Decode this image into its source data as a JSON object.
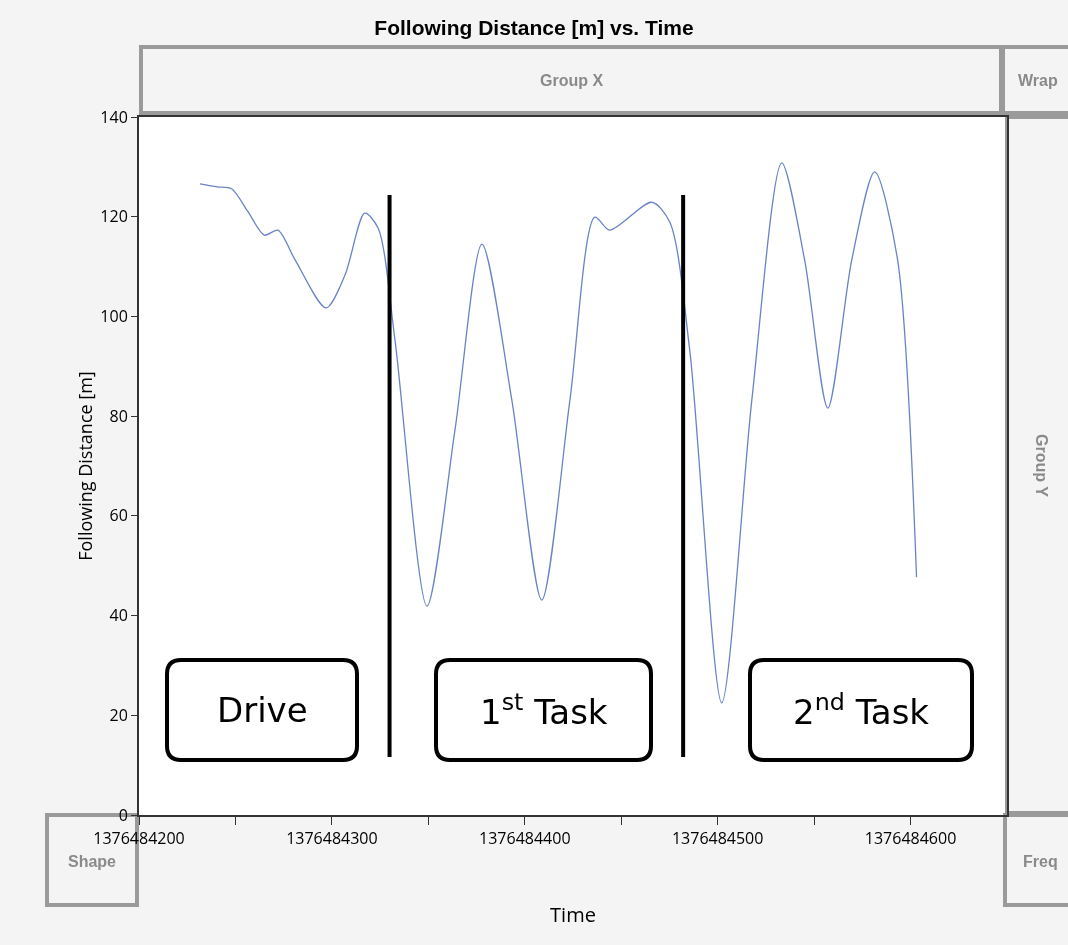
{
  "chart_data": {
    "type": "line",
    "title": "Following Distance [m] vs. Time",
    "xlabel": "Time",
    "ylabel": "Following Distance [m]",
    "x": [
      1376484231.6,
      1376484240.5,
      1376484248,
      1376484256.5,
      1376484265,
      1376484272,
      1376484281,
      1376484297,
      1376484306.8,
      1376484317,
      1376484324,
      1376484332.7,
      1376484349.3,
      1376484363.8,
      1376484377.8,
      1376484393.3,
      1376484408.8,
      1376484423.4,
      1376484436.3,
      1376484444,
      1376484465.8,
      1376484475.2,
      1376484485.5,
      1376484502.1,
      1376484517.7,
      1376484533.2,
      1376484545.1,
      1376484557.1,
      1376484569.5,
      1376484581.4,
      1376484593.3,
      1376484603.1
    ],
    "series": [
      {
        "color": "#6a83c6",
        "values": [
          126.6,
          126,
          125.6,
          121,
          116.3,
          117.3,
          111.3,
          101.7,
          108.3,
          120.7,
          117.7,
          95.3,
          41.9,
          77.2,
          114.5,
          83.2,
          43.1,
          83.2,
          119.9,
          117.3,
          122.9,
          118.9,
          93.3,
          22.5,
          83.2,
          130.8,
          111.3,
          81.6,
          111.3,
          129,
          111.3,
          47.7
        ]
      }
    ],
    "xlim": [
      1376484200,
      1376484650
    ],
    "xticks": [
      1376484200,
      {
        "value": 1376484250,
        "label": null
      },
      1376484300,
      {
        "value": 1376484350,
        "label": null
      },
      1376484400,
      {
        "value": 1376484450,
        "label": null
      },
      1376484500,
      {
        "value": 1376484550,
        "label": null
      },
      1376484600
    ],
    "ylim": [
      0,
      140
    ],
    "yticks": [
      0,
      20,
      40,
      60,
      80,
      100,
      120,
      140
    ],
    "grid": false,
    "marker": "none",
    "line_style": "solid",
    "ref_lines": [
      {
        "axis": "x",
        "value": 1376484329.9,
        "color": "#000000"
      },
      {
        "axis": "x",
        "value": 1376484482.1,
        "color": "#000000"
      }
    ],
    "annotations": [
      "Drive",
      "1$^{st}$ Task",
      "2$^{nd}$ Task",
      "Group X",
      "Wrap",
      "Group Y",
      "Shape",
      "Freq"
    ]
  }
}
